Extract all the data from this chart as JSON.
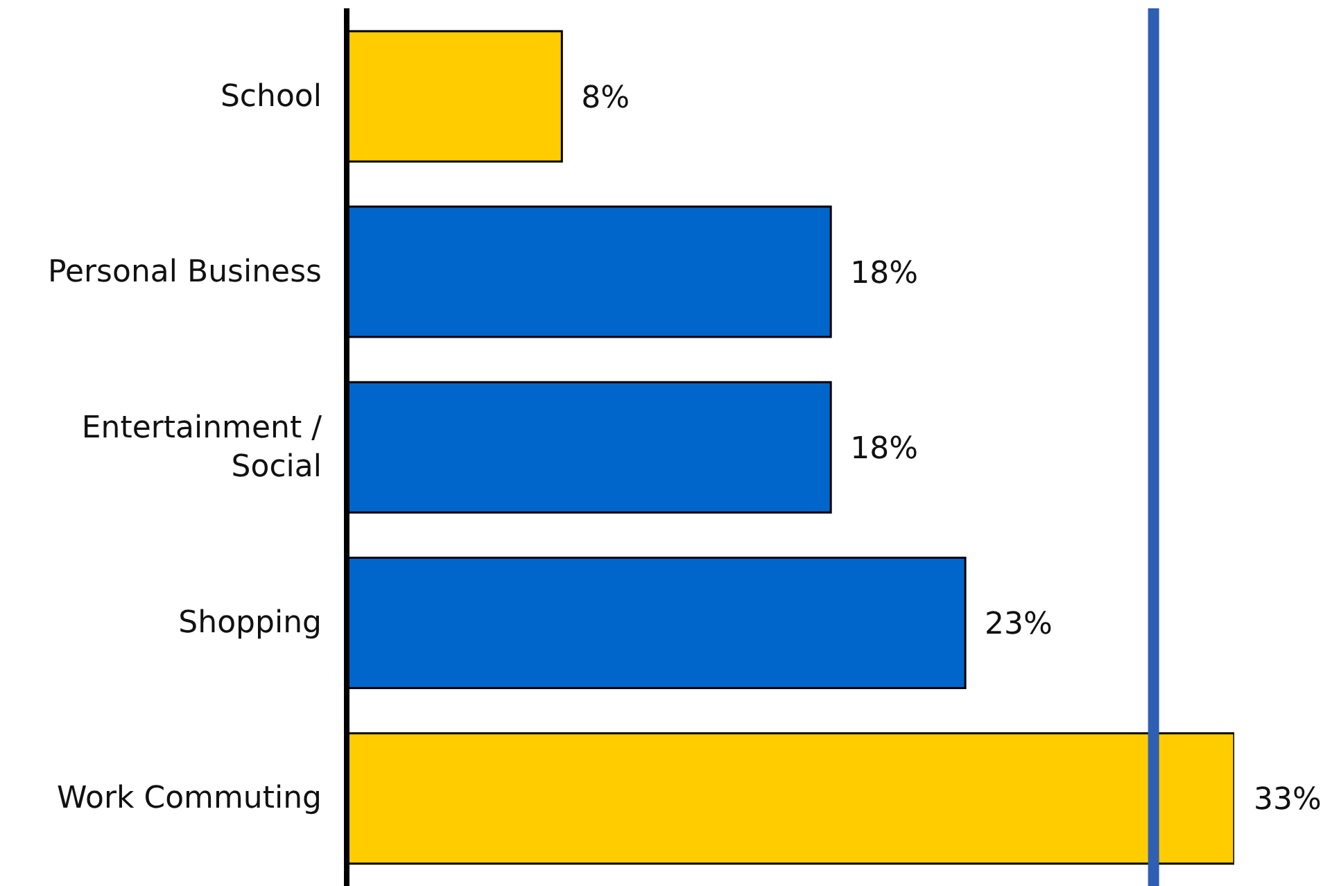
{
  "chart_data": {
    "type": "bar",
    "orientation": "horizontal",
    "categories": [
      "School",
      "Personal Business",
      "Entertainment / Social",
      "Shopping",
      "Work Commuting"
    ],
    "values": [
      8,
      18,
      18,
      23,
      33
    ],
    "colors": [
      "#ffcc00",
      "#0066cc",
      "#0066cc",
      "#0066cc",
      "#ffcc00"
    ],
    "value_labels": [
      "8%",
      "18%",
      "18%",
      "23%",
      "33%"
    ],
    "tick_labels": "y",
    "ref_lines": [
      {
        "axis": "x",
        "value": 30,
        "color": "#2f5fb3"
      }
    ],
    "grid": false,
    "legend": false
  }
}
